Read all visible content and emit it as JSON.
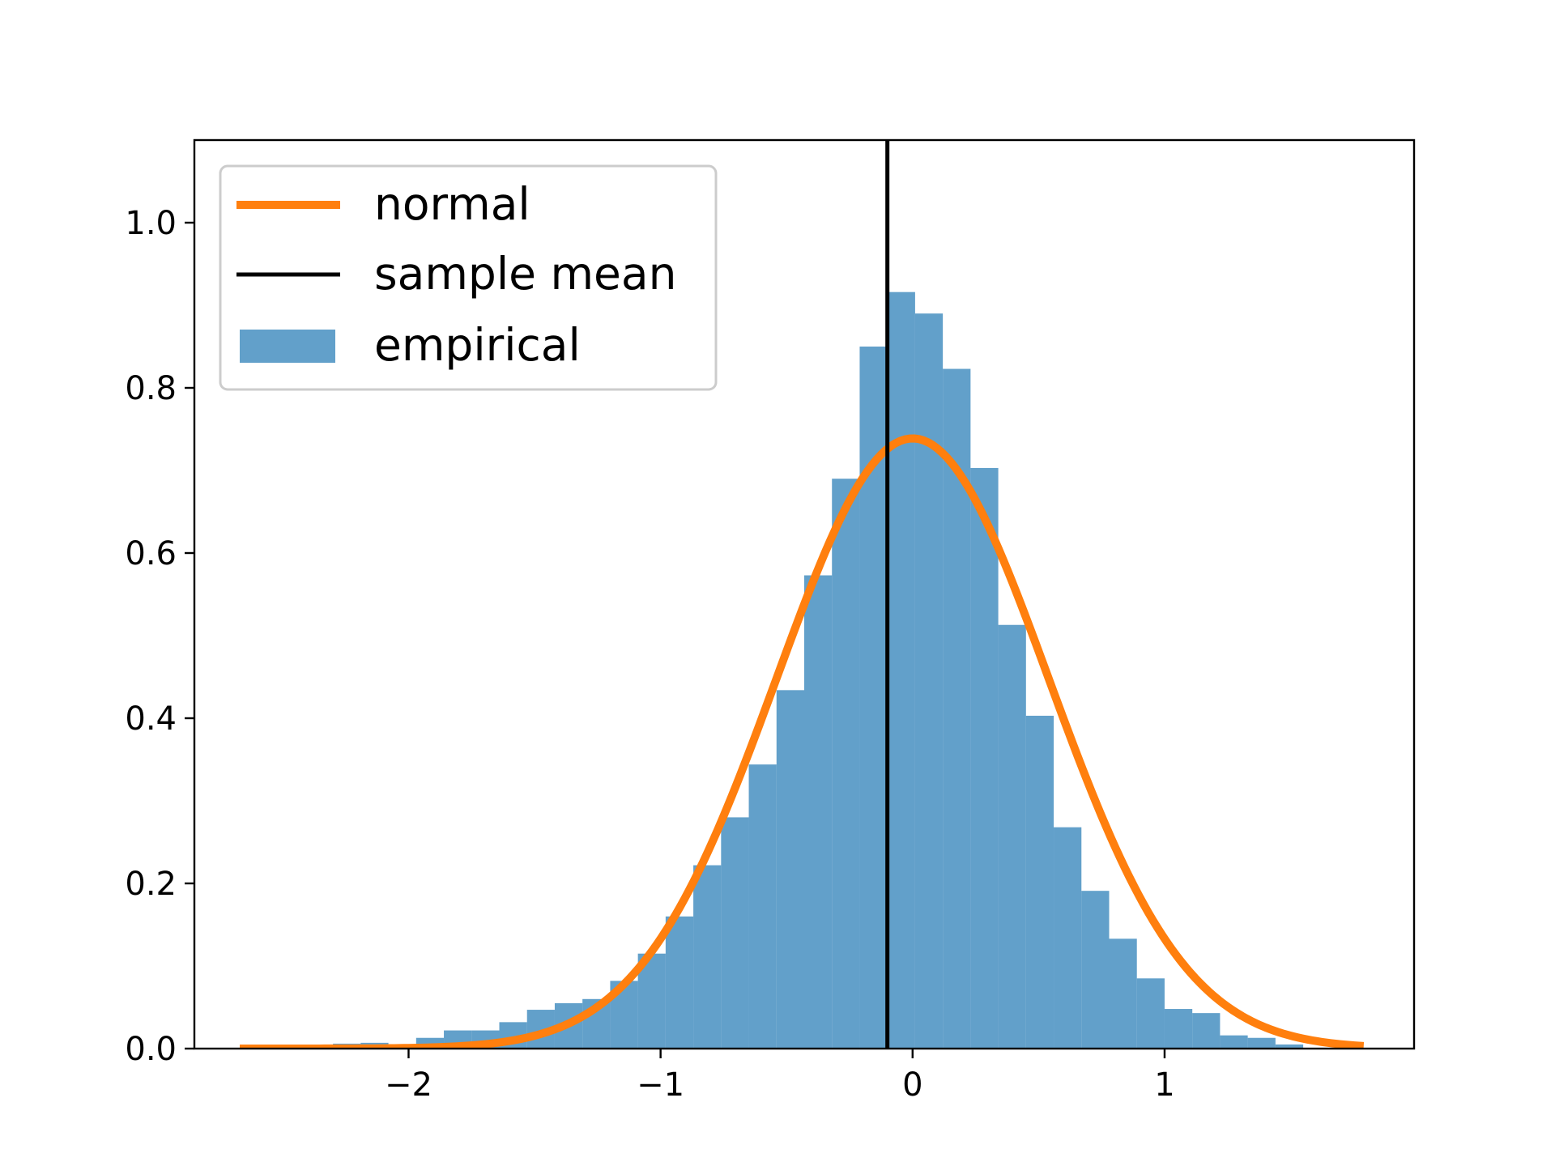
{
  "chart_data": {
    "type": "histogram",
    "title": "",
    "xlabel": "",
    "ylabel": "",
    "xlim": [
      -2.85,
      1.99
    ],
    "ylim": [
      0.0,
      1.1
    ],
    "grid": false,
    "legend_location": "upper-left",
    "xticks": [
      {
        "value": -2,
        "label": "−2"
      },
      {
        "value": -1,
        "label": "−1"
      },
      {
        "value": 0,
        "label": "0"
      },
      {
        "value": 1,
        "label": "1"
      }
    ],
    "yticks": [
      {
        "value": 0.0,
        "label": "0.0"
      },
      {
        "value": 0.2,
        "label": "0.2"
      },
      {
        "value": 0.4,
        "label": "0.4"
      },
      {
        "value": 0.6,
        "label": "0.6"
      },
      {
        "value": 0.8,
        "label": "0.8"
      },
      {
        "value": 1.0,
        "label": "1.0"
      }
    ],
    "histogram": {
      "name": "empirical",
      "color": "#1f77b4",
      "opacity": 0.7,
      "bin_edges": [
        -2.63,
        -2.52,
        -2.41,
        -2.3,
        -2.19,
        -2.08,
        -1.97,
        -1.86,
        -1.75,
        -1.64,
        -1.53,
        -1.42,
        -1.31,
        -1.2,
        -1.09,
        -0.98,
        -0.87,
        -0.76,
        -0.65,
        -0.54,
        -0.43,
        -0.32,
        -0.21,
        -0.1,
        0.01,
        0.12,
        0.23,
        0.34,
        0.45,
        0.56,
        0.67,
        0.78,
        0.89,
        1.0,
        1.11,
        1.22,
        1.33,
        1.44,
        1.55
      ],
      "heights": [
        0.003,
        0.003,
        0.004,
        0.006,
        0.007,
        0.005,
        0.013,
        0.022,
        0.022,
        0.032,
        0.047,
        0.055,
        0.06,
        0.082,
        0.115,
        0.16,
        0.222,
        0.28,
        0.344,
        0.434,
        0.573,
        0.69,
        0.85,
        0.916,
        0.89,
        0.823,
        0.703,
        0.513,
        0.403,
        0.268,
        0.191,
        0.133,
        0.085,
        0.048,
        0.043,
        0.016,
        0.013,
        0.005
      ]
    },
    "series": [
      {
        "name": "normal",
        "type": "line",
        "color": "#ff7f0e",
        "distribution": "normal",
        "mean": 0.0,
        "std": 0.54,
        "x_range": [
          -2.67,
          1.79
        ]
      },
      {
        "name": "sample mean",
        "type": "vline",
        "color": "#000000",
        "x": -0.1
      }
    ],
    "legend": [
      {
        "label": "normal",
        "style": "line",
        "color": "#ff7f0e"
      },
      {
        "label": "sample mean",
        "style": "line",
        "color": "#000000"
      },
      {
        "label": "empirical",
        "style": "patch",
        "color": "#1f77b4"
      }
    ]
  }
}
